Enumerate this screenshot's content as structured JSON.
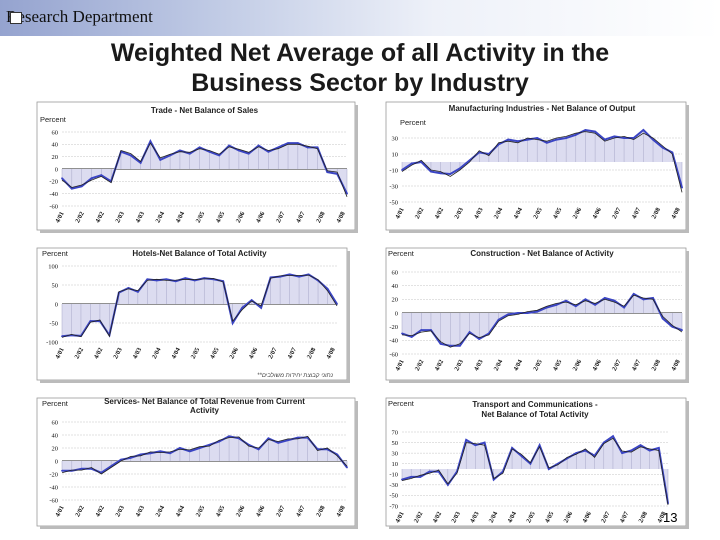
{
  "header": {
    "department": "Research Department",
    "title_line1": "Weighted Net Average of all Activity in the",
    "title_line2": "Business Sector by Industry"
  },
  "page_number": "13",
  "colors": {
    "series_main": "#3b45c4",
    "series_secondary": "#222222",
    "fill": "#dcdcf0",
    "grid": "#9a9a9a"
  },
  "chart_data": [
    {
      "type": "area",
      "title_lines": [
        "Trade - Net Balance of Sales"
      ],
      "ylabel": "Percent",
      "ylim": [
        -60,
        60
      ],
      "yticks": [
        -60,
        -40,
        -20,
        0,
        20,
        40,
        60
      ],
      "xticks": [
        "4/01",
        "2/02",
        "4/02",
        "2/03",
        "4/03",
        "2/04",
        "4/04",
        "2/05",
        "4/05",
        "2/06",
        "4/06",
        "2/07",
        "4/07",
        "2/08",
        "4/08"
      ],
      "series": [
        {
          "values": [
            -15,
            -32,
            -28,
            -15,
            -10,
            -20,
            28,
            22,
            10,
            45,
            15,
            22,
            30,
            25,
            35,
            28,
            22,
            38,
            30,
            25,
            38,
            28,
            35,
            42,
            42,
            35,
            35,
            -5,
            -8,
            -40
          ]
        },
        {
          "values": [
            -18,
            -30,
            -26,
            -18,
            -12,
            -22,
            30,
            25,
            12,
            42,
            18,
            24,
            28,
            27,
            33,
            30,
            24,
            36,
            32,
            27,
            36,
            30,
            33,
            40,
            40,
            37,
            33,
            -3,
            -5,
            -45
          ]
        }
      ]
    },
    {
      "type": "area",
      "title_lines": [
        "Manufacturing Industries - Net Balance of Output"
      ],
      "ylabel": "Percent",
      "ylim": [
        -50,
        40
      ],
      "yticks": [
        -50,
        -30,
        -10,
        10,
        30
      ],
      "xticks": [
        "4/01",
        "2/02",
        "4/02",
        "2/03",
        "4/03",
        "2/04",
        "4/04",
        "2/05",
        "4/05",
        "2/06",
        "4/06",
        "2/07",
        "4/07",
        "2/08",
        "4/08"
      ],
      "series": [
        {
          "values": [
            -10,
            -2,
            0,
            -12,
            -14,
            -15,
            -8,
            2,
            12,
            10,
            22,
            28,
            26,
            28,
            30,
            24,
            28,
            30,
            34,
            40,
            38,
            28,
            32,
            30,
            30,
            40,
            28,
            18,
            12,
            -32
          ]
        },
        {
          "values": [
            -12,
            -4,
            2,
            -10,
            -12,
            -18,
            -10,
            0,
            14,
            8,
            24,
            26,
            24,
            30,
            28,
            26,
            30,
            32,
            36,
            38,
            36,
            26,
            30,
            32,
            28,
            36,
            30,
            20,
            10,
            -38
          ]
        }
      ]
    },
    {
      "type": "area",
      "title_lines": [
        "Hotels-Net Balance of Total Activity"
      ],
      "ylabel": "Percent",
      "ylim": [
        -100,
        100
      ],
      "yticks": [
        -100,
        -50,
        0,
        50,
        100
      ],
      "xticks": [
        "4/01",
        "2/02",
        "4/02",
        "2/03",
        "4/03",
        "2/04",
        "4/04",
        "2/05",
        "4/05",
        "2/06",
        "4/06",
        "2/07",
        "4/07",
        "2/08",
        "4/08"
      ],
      "note": "**נתוני קבוצת יחידות משולבים",
      "series": [
        {
          "values": [
            -85,
            -82,
            -84,
            -45,
            -45,
            -82,
            30,
            42,
            32,
            65,
            62,
            65,
            60,
            68,
            62,
            68,
            65,
            60,
            -50,
            -10,
            10,
            -10,
            70,
            72,
            78,
            72,
            78,
            62,
            40,
            0
          ]
        },
        {
          "values": [
            -88,
            -80,
            -86,
            -48,
            -42,
            -85,
            32,
            40,
            35,
            62,
            65,
            62,
            63,
            65,
            64,
            66,
            67,
            58,
            -45,
            -15,
            8,
            -5,
            68,
            74,
            75,
            75,
            76,
            64,
            35,
            -5
          ]
        }
      ]
    },
    {
      "type": "area",
      "title_lines": [
        "Construction - Net Balance of Activity"
      ],
      "ylabel": "Percent",
      "ylim": [
        -60,
        60
      ],
      "yticks": [
        -60,
        -40,
        -20,
        0,
        20,
        40,
        60
      ],
      "xticks": [
        "4/01",
        "2/02",
        "4/02",
        "2/03",
        "4/03",
        "2/04",
        "4/04",
        "2/05",
        "4/05",
        "2/06",
        "4/06",
        "2/07",
        "4/07",
        "2/08",
        "4/08"
      ],
      "series": [
        {
          "values": [
            -30,
            -35,
            -25,
            -25,
            -45,
            -48,
            -48,
            -28,
            -38,
            -30,
            -10,
            -2,
            0,
            0,
            2,
            8,
            12,
            18,
            10,
            20,
            12,
            22,
            18,
            8,
            28,
            20,
            22,
            -8,
            -20,
            -25
          ]
        },
        {
          "values": [
            -32,
            -33,
            -28,
            -26,
            -42,
            -50,
            -45,
            -30,
            -36,
            -32,
            -12,
            -4,
            -2,
            2,
            4,
            10,
            14,
            16,
            12,
            18,
            14,
            20,
            16,
            10,
            26,
            22,
            20,
            -5,
            -18,
            -28
          ]
        }
      ]
    },
    {
      "type": "area",
      "title_lines": [
        "Services- Net Balance of Total Revenue from Current",
        "Activity"
      ],
      "ylabel": "Percent",
      "ylim": [
        -60,
        60
      ],
      "yticks": [
        -60,
        -40,
        -20,
        0,
        20,
        40,
        60
      ],
      "xticks": [
        "4/01",
        "2/02",
        "4/02",
        "2/03",
        "4/03",
        "2/04",
        "4/04",
        "2/05",
        "4/05",
        "2/06",
        "4/06",
        "2/07",
        "4/07",
        "2/08",
        "4/08"
      ],
      "series": [
        {
          "values": [
            -15,
            -15,
            -12,
            -12,
            -18,
            -8,
            2,
            5,
            10,
            12,
            15,
            12,
            20,
            15,
            20,
            25,
            30,
            38,
            35,
            25,
            18,
            35,
            28,
            32,
            36,
            36,
            18,
            18,
            10,
            -10
          ]
        },
        {
          "values": [
            -18,
            -14,
            -14,
            -10,
            -20,
            -10,
            0,
            7,
            8,
            14,
            13,
            14,
            18,
            17,
            22,
            23,
            32,
            36,
            37,
            23,
            20,
            33,
            30,
            34,
            34,
            38,
            16,
            20,
            8,
            -8
          ]
        }
      ]
    },
    {
      "type": "area",
      "title_lines": [
        "Transport and Communications -",
        "Net Balance of Total Activity"
      ],
      "ylabel": "Percent",
      "ylim": [
        -70,
        70
      ],
      "yticks": [
        -70,
        -50,
        -30,
        -10,
        10,
        30,
        50,
        70
      ],
      "xticks": [
        "4/01",
        "2/02",
        "4/02",
        "2/03",
        "4/03",
        "2/04",
        "4/04",
        "2/05",
        "4/05",
        "2/06",
        "4/06",
        "2/07",
        "4/07",
        "2/08",
        "4/08"
      ],
      "series": [
        {
          "values": [
            -20,
            -15,
            -15,
            -5,
            -5,
            -30,
            -5,
            55,
            45,
            50,
            -20,
            -5,
            40,
            25,
            10,
            45,
            0,
            10,
            20,
            30,
            35,
            25,
            50,
            62,
            30,
            35,
            45,
            35,
            40,
            -65
          ]
        },
        {
          "values": [
            -22,
            -18,
            -12,
            -8,
            -2,
            -28,
            -8,
            50,
            48,
            45,
            -18,
            -8,
            38,
            28,
            12,
            42,
            2,
            8,
            22,
            28,
            38,
            22,
            48,
            58,
            34,
            32,
            42,
            38,
            35,
            -68
          ]
        }
      ]
    }
  ]
}
